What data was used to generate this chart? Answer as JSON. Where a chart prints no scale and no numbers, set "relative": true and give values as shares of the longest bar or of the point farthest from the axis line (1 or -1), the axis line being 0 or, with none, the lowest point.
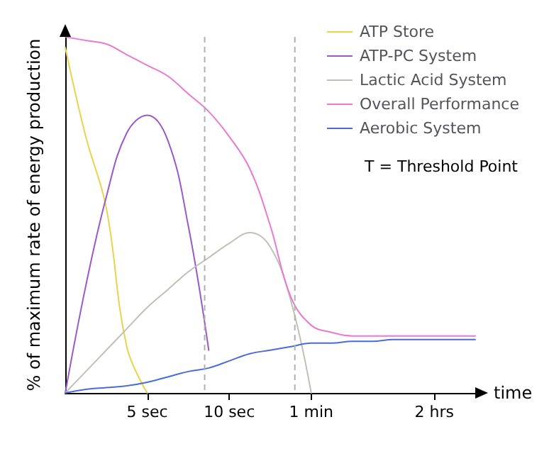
{
  "chart_data": {
    "type": "line",
    "relative": true,
    "xlabel": "time",
    "ylabel": "% of maximum rate of energy production",
    "categories": [
      null,
      null,
      null,
      null,
      "5 sec",
      null,
      null,
      null,
      "10 sec",
      null,
      null,
      null,
      "1 min",
      null,
      null,
      null,
      null,
      null,
      "2 hrs",
      null,
      null
    ],
    "tick_labels": "x",
    "legend": "top right",
    "grid": false,
    "marker": "none",
    "line_style": "solid",
    "annotations": [
      "T = Threshold Point"
    ],
    "series": [
      {
        "name": "ATP Store",
        "color": "#e8d44d",
        "values": [
          0.97,
          0.72,
          0.52,
          0.13,
          0,
          null,
          null,
          null,
          null,
          null,
          null,
          null,
          null,
          null,
          null,
          null,
          null,
          null,
          null,
          null,
          null
        ]
      },
      {
        "name": "ATP-PC System",
        "color": "#9b59c8",
        "values": [
          0,
          0.3,
          0.55,
          0.73,
          0.78,
          0.71,
          0.47,
          0.12,
          null,
          null,
          null,
          null,
          null,
          null,
          null,
          null,
          null,
          null,
          null,
          null,
          null
        ]
      },
      {
        "name": "Lactic Acid System",
        "color": "#c0c0b8",
        "values": [
          0,
          0.06,
          0.12,
          0.18,
          0.24,
          0.29,
          0.34,
          0.38,
          0.42,
          0.45,
          0.41,
          0.26,
          0,
          null,
          null,
          null,
          null,
          null,
          null,
          null,
          null
        ]
      },
      {
        "name": "Overall Performance",
        "color": "#e87ad0",
        "values": [
          1,
          0.99,
          0.98,
          0.95,
          0.92,
          0.89,
          0.84,
          0.79,
          0.72,
          0.63,
          0.47,
          0.27,
          0.19,
          0.17,
          0.16,
          0.16,
          0.16,
          0.16,
          0.16,
          0.16,
          0.16
        ]
      },
      {
        "name": "Aerobic System",
        "color": "#4a6cd8",
        "values": [
          0,
          0.01,
          0.015,
          0.02,
          0.03,
          0.045,
          0.06,
          0.07,
          0.09,
          0.11,
          0.12,
          0.13,
          0.14,
          0.14,
          0.145,
          0.145,
          0.15,
          0.15,
          0.15,
          0.15,
          0.15
        ]
      }
    ]
  }
}
